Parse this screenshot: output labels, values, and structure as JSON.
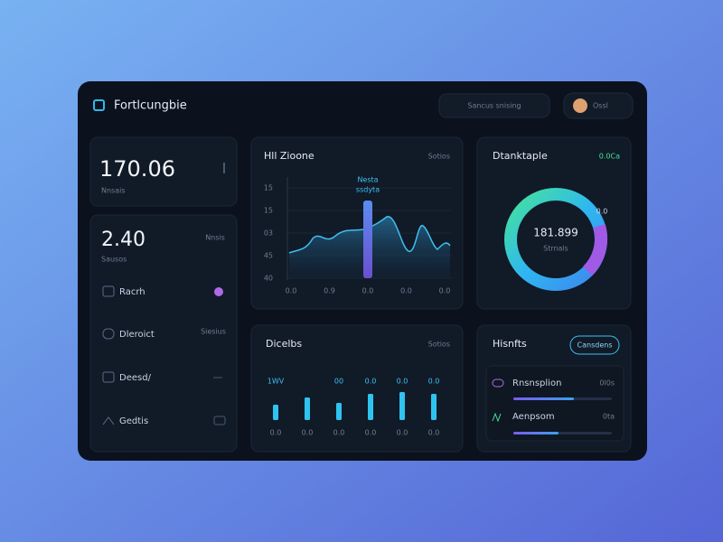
{
  "header": {
    "title": "Fortlcungbie",
    "search": "Sancus snising",
    "user": "Ossl"
  },
  "stats": [
    {
      "value": "170.06",
      "label": "Nnsais"
    },
    {
      "value": "2.40",
      "label": "Sausos",
      "note": "Nnsis"
    }
  ],
  "nav": [
    {
      "label": "Racrh"
    },
    {
      "label": "Dleroict",
      "meta": "Siesius"
    },
    {
      "label": "Deesd/"
    },
    {
      "label": "Gedtis"
    }
  ],
  "area_card": {
    "title": "Hll Zioone",
    "action": "Sotios",
    "tooltip": [
      "Nesta",
      "ssdyta"
    ],
    "y_labels": [
      "15",
      "15",
      "03",
      "45",
      "40"
    ],
    "x_labels": [
      "0.0",
      "0.9",
      "0.0",
      "0.0",
      "0.0"
    ]
  },
  "donut_card": {
    "title": "Dtanktaple",
    "action": "0.0Ca",
    "center_value": "181.899",
    "center_label": "Strnals",
    "segment_label": "0.0"
  },
  "bar_card": {
    "title": "Dicelbs",
    "action": "Sotios",
    "top_labels": [
      "1WV",
      "",
      "00",
      "0.0",
      "0.0",
      "0.0"
    ],
    "x_labels": [
      "0.0",
      "0.0",
      "0.0",
      "0.0",
      "0.0",
      "0.0"
    ]
  },
  "list_card": {
    "title": "Hisnfts",
    "button": "Cansdens",
    "rows": [
      {
        "label": "Rnsnsplion",
        "value": "0l0s"
      },
      {
        "label": "Aenpsom",
        "value": "0ta"
      }
    ]
  }
}
